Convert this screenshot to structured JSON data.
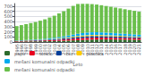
{
  "chart_data": {
    "type": "bar",
    "stacked": true,
    "xlabel": "Leto",
    "categories": [
      "1995",
      "1996",
      "1997",
      "1998",
      "1999",
      "2000",
      "2001",
      "2002",
      "2003",
      "2004",
      "2005",
      "2006",
      "2007",
      "2008",
      "2009",
      "2010",
      "2011",
      "2012",
      "2013",
      "2014",
      "2015",
      "2016",
      "2017",
      "2018",
      "2019",
      "2020",
      "2021"
    ],
    "series": [
      {
        "name": "papir",
        "color": "#2d6b2d",
        "values": [
          10,
          11,
          12,
          13,
          14,
          15,
          16,
          18,
          20,
          22,
          25,
          28,
          32,
          36,
          40,
          44,
          47,
          49,
          50,
          50,
          50,
          49,
          48,
          47,
          46,
          45,
          44
        ]
      },
      {
        "name": "steklo",
        "color": "#e8001e",
        "values": [
          8,
          9,
          10,
          11,
          12,
          13,
          15,
          17,
          19,
          22,
          25,
          28,
          32,
          35,
          37,
          38,
          38,
          37,
          36,
          35,
          34,
          33,
          32,
          31,
          30,
          29,
          28
        ]
      },
      {
        "name": "bio",
        "color": "#003d99",
        "values": [
          5,
          6,
          7,
          8,
          9,
          10,
          11,
          13,
          15,
          17,
          20,
          23,
          26,
          29,
          31,
          32,
          32,
          31,
          30,
          29,
          28,
          27,
          26,
          25,
          24,
          23,
          22
        ]
      },
      {
        "name": "plastika",
        "color": "#ffcc00",
        "values": [
          3,
          3,
          4,
          4,
          5,
          6,
          7,
          8,
          9,
          11,
          13,
          15,
          17,
          19,
          20,
          21,
          21,
          21,
          20,
          19,
          18,
          17,
          16,
          15,
          14,
          13,
          12
        ]
      },
      {
        "name": "mešani komunalni odpadki",
        "color": "#00aaee",
        "values": [
          5,
          6,
          7,
          9,
          10,
          12,
          14,
          17,
          20,
          24,
          28,
          33,
          38,
          43,
          47,
          50,
          52,
          53,
          52,
          50,
          48,
          46,
          44,
          42,
          40,
          38,
          36
        ]
      },
      {
        "name": "mešani komunalni odpadki ",
        "color": "#6abf4b",
        "values": [
          280,
          295,
          310,
          325,
          340,
          360,
          380,
          405,
          430,
          460,
          490,
          525,
          560,
          580,
          570,
          560,
          550,
          540,
          530,
          520,
          510,
          500,
          490,
          480,
          470,
          460,
          450
        ]
      }
    ],
    "ylim": [
      0,
      750
    ],
    "yticks": [
      0,
      100,
      200,
      300,
      400,
      500,
      600,
      700
    ],
    "grid": true,
    "legend": "bottom"
  }
}
